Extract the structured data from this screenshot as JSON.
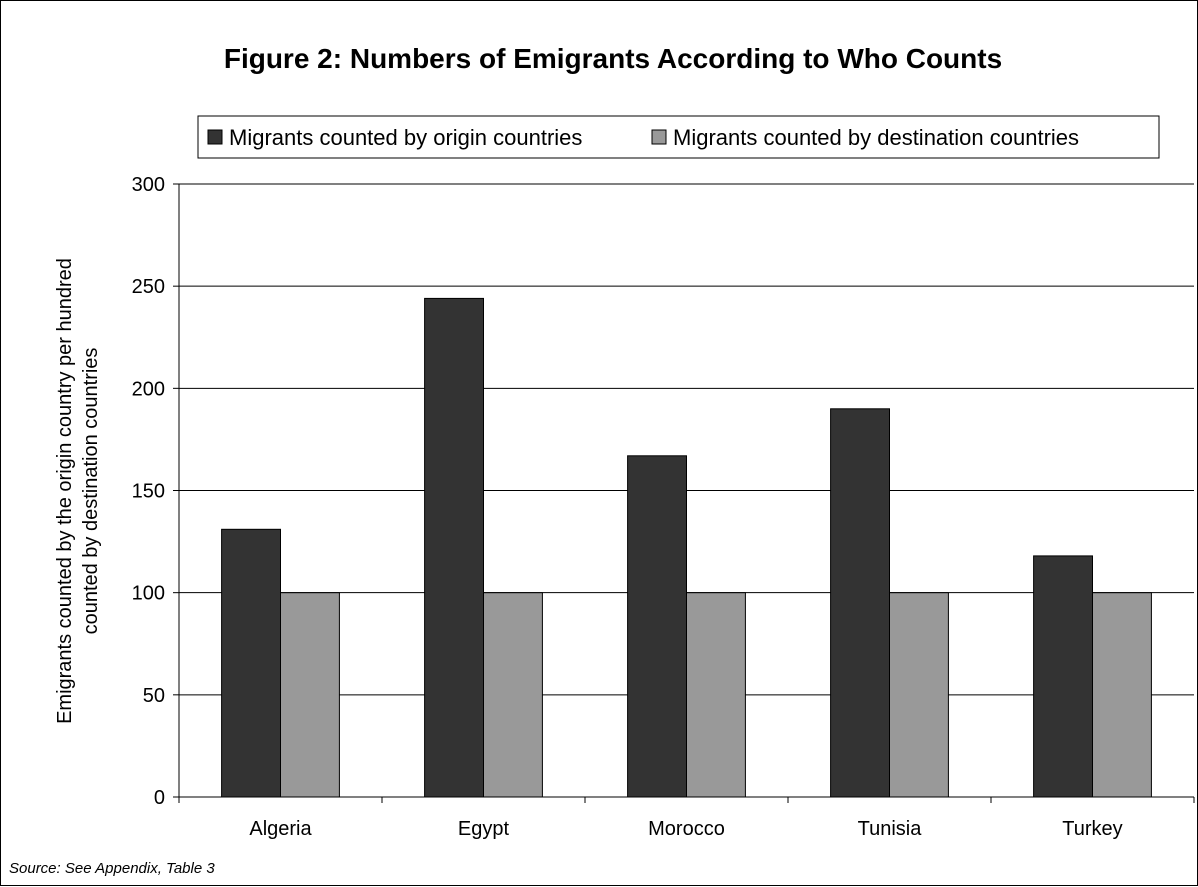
{
  "chart_data": {
    "type": "bar",
    "title": "Figure 2: Numbers of Emigrants According to Who Counts",
    "ylabel": "Emigrants counted by  the origin country per hundred counted by destination countries",
    "ylabel_lines": [
      "Emigrants counted by  the origin country per hundred",
      "counted by destination countries"
    ],
    "xlabel": "",
    "categories": [
      "Algeria",
      "Egypt",
      "Morocco",
      "Tunisia",
      "Turkey"
    ],
    "series": [
      {
        "name": "Migrants counted by origin countries",
        "color": "#333333",
        "values": [
          131,
          244,
          167,
          190,
          118
        ]
      },
      {
        "name": "Migrants counted by destination countries",
        "color": "#999999",
        "values": [
          100,
          100,
          100,
          100,
          100
        ]
      }
    ],
    "ylim": [
      0,
      300
    ],
    "yticks": [
      0,
      50,
      100,
      150,
      200,
      250,
      300
    ],
    "ytick_labels": [
      "0",
      "50",
      "100",
      "150",
      "200",
      "250",
      "300"
    ],
    "grid": true,
    "legend_position": "top",
    "source": "Source: See Appendix, Table 3"
  }
}
